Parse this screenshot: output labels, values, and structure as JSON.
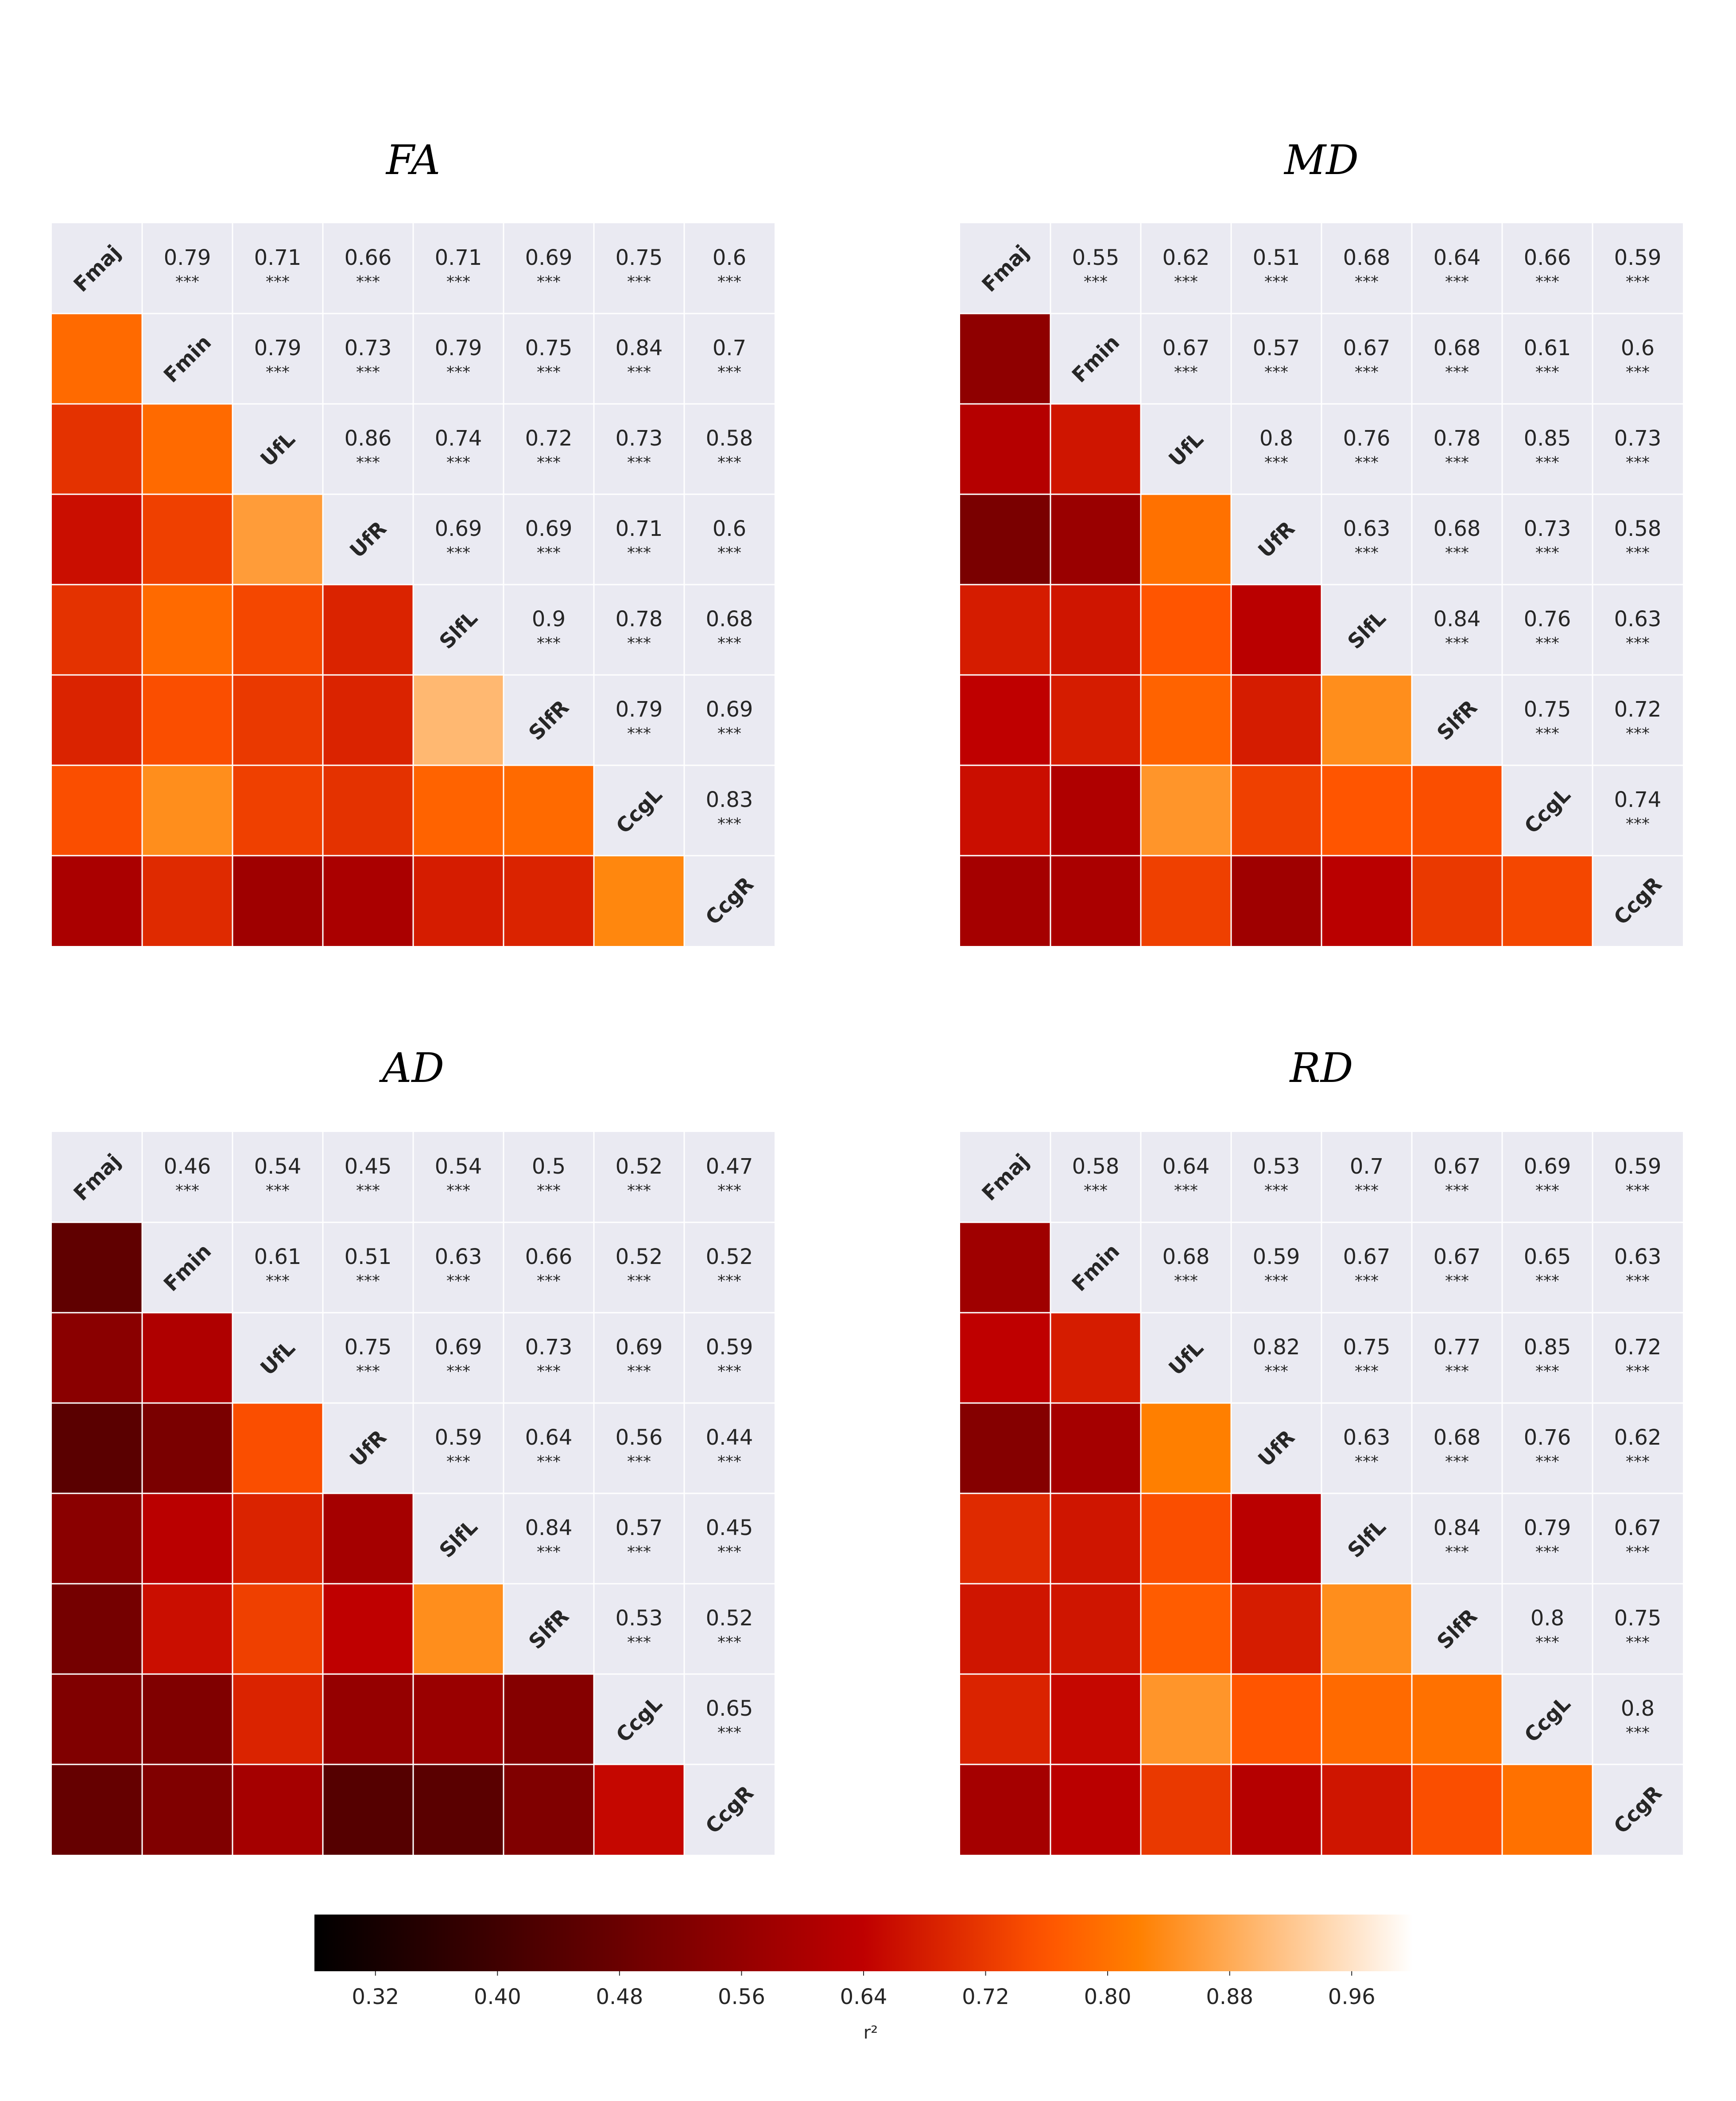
{
  "chart_data": {
    "type": "heatmap",
    "labels": [
      "Fmaj",
      "Fmin",
      "UfL",
      "UfR",
      "SlfL",
      "SlfR",
      "CcgL",
      "CcgR"
    ],
    "significance_mark": "***",
    "colorbar": {
      "label": "r²",
      "colormap": "gist_heat",
      "range": [
        0.28,
        1.0
      ],
      "ticks": [
        "0.32",
        "0.40",
        "0.48",
        "0.56",
        "0.64",
        "0.72",
        "0.80",
        "0.88",
        "0.96"
      ]
    },
    "panels": [
      {
        "title": "FA",
        "values": [
          [
            null,
            0.79,
            0.71,
            0.66,
            0.71,
            0.69,
            0.75,
            0.6
          ],
          [
            0.79,
            null,
            0.79,
            0.73,
            0.79,
            0.75,
            0.84,
            0.7
          ],
          [
            0.71,
            0.79,
            null,
            0.86,
            0.74,
            0.72,
            0.73,
            0.58
          ],
          [
            0.66,
            0.73,
            0.86,
            null,
            0.69,
            0.69,
            0.71,
            0.6
          ],
          [
            0.71,
            0.79,
            0.74,
            0.69,
            null,
            0.9,
            0.78,
            0.68
          ],
          [
            0.69,
            0.75,
            0.72,
            0.69,
            0.9,
            null,
            0.79,
            0.69
          ],
          [
            0.75,
            0.84,
            0.73,
            0.71,
            0.78,
            0.79,
            null,
            0.83
          ],
          [
            0.6,
            0.7,
            0.58,
            0.6,
            0.68,
            0.69,
            0.83,
            null
          ]
        ]
      },
      {
        "title": "MD",
        "values": [
          [
            null,
            0.55,
            0.62,
            0.51,
            0.68,
            0.64,
            0.66,
            0.59
          ],
          [
            0.55,
            null,
            0.67,
            0.57,
            0.67,
            0.68,
            0.61,
            0.6
          ],
          [
            0.62,
            0.67,
            null,
            0.8,
            0.76,
            0.78,
            0.85,
            0.73
          ],
          [
            0.51,
            0.57,
            0.8,
            null,
            0.63,
            0.68,
            0.73,
            0.58
          ],
          [
            0.68,
            0.67,
            0.76,
            0.63,
            null,
            0.84,
            0.76,
            0.63
          ],
          [
            0.64,
            0.68,
            0.78,
            0.68,
            0.84,
            null,
            0.75,
            0.72
          ],
          [
            0.66,
            0.61,
            0.85,
            0.73,
            0.76,
            0.75,
            null,
            0.74
          ],
          [
            0.59,
            0.6,
            0.73,
            0.58,
            0.63,
            0.72,
            0.74,
            null
          ]
        ]
      },
      {
        "title": "AD",
        "values": [
          [
            null,
            0.46,
            0.54,
            0.45,
            0.54,
            0.5,
            0.52,
            0.47
          ],
          [
            0.46,
            null,
            0.61,
            0.51,
            0.63,
            0.66,
            0.52,
            0.52
          ],
          [
            0.54,
            0.61,
            null,
            0.75,
            0.69,
            0.73,
            0.69,
            0.59
          ],
          [
            0.45,
            0.51,
            0.75,
            null,
            0.59,
            0.64,
            0.56,
            0.44
          ],
          [
            0.54,
            0.63,
            0.69,
            0.59,
            null,
            0.84,
            0.57,
            0.45
          ],
          [
            0.5,
            0.66,
            0.73,
            0.64,
            0.84,
            null,
            0.53,
            0.52
          ],
          [
            0.52,
            0.52,
            0.69,
            0.56,
            0.57,
            0.53,
            null,
            0.65
          ],
          [
            0.47,
            0.52,
            0.59,
            0.44,
            0.45,
            0.52,
            0.65,
            null
          ]
        ]
      },
      {
        "title": "RD",
        "values": [
          [
            null,
            0.58,
            0.64,
            0.53,
            0.7,
            0.67,
            0.69,
            0.59
          ],
          [
            0.58,
            null,
            0.68,
            0.59,
            0.67,
            0.67,
            0.65,
            0.63
          ],
          [
            0.64,
            0.68,
            null,
            0.82,
            0.75,
            0.77,
            0.85,
            0.72
          ],
          [
            0.53,
            0.59,
            0.82,
            null,
            0.63,
            0.68,
            0.76,
            0.62
          ],
          [
            0.7,
            0.67,
            0.75,
            0.63,
            null,
            0.84,
            0.79,
            0.67
          ],
          [
            0.67,
            0.67,
            0.77,
            0.68,
            0.84,
            null,
            0.8,
            0.75
          ],
          [
            0.69,
            0.65,
            0.85,
            0.76,
            0.79,
            0.8,
            null,
            0.8
          ],
          [
            0.59,
            0.63,
            0.72,
            0.62,
            0.67,
            0.75,
            0.8,
            null
          ]
        ]
      }
    ]
  }
}
